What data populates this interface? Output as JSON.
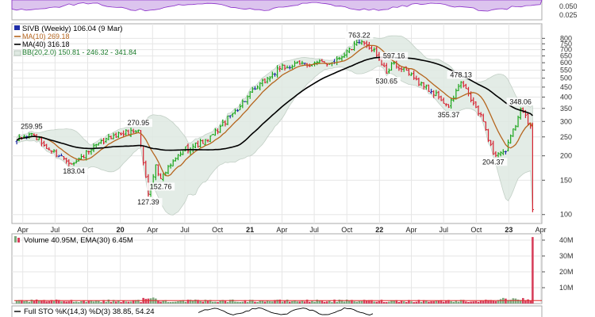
{
  "chart_data": {
    "type": "ohlc",
    "title": "SIVB (Weekly) 106.04 (9 Mar)",
    "scale": "log",
    "price_axis": {
      "ylim": [
        90,
        950
      ],
      "ticks": [
        100,
        150,
        200,
        250,
        300,
        350,
        400,
        450,
        500,
        550,
        600,
        650,
        700,
        750,
        800
      ]
    },
    "time_axis": {
      "ticks": [
        {
          "label": "Apr",
          "date": "2019-04-01"
        },
        {
          "label": "Jul",
          "date": "2019-07-01"
        },
        {
          "label": "Oct",
          "date": "2019-10-01"
        },
        {
          "label": "20",
          "date": "2020-01-01",
          "bold": true
        },
        {
          "label": "Apr",
          "date": "2020-04-01"
        },
        {
          "label": "Jul",
          "date": "2020-07-01"
        },
        {
          "label": "Oct",
          "date": "2020-10-01"
        },
        {
          "label": "21",
          "date": "2021-01-01",
          "bold": true
        },
        {
          "label": "Apr",
          "date": "2021-04-01"
        },
        {
          "label": "Jul",
          "date": "2021-07-01"
        },
        {
          "label": "Oct",
          "date": "2021-10-01"
        },
        {
          "label": "22",
          "date": "2022-01-01",
          "bold": true
        },
        {
          "label": "Apr",
          "date": "2022-04-01"
        },
        {
          "label": "Jul",
          "date": "2022-07-01"
        },
        {
          "label": "Oct",
          "date": "2022-10-01"
        },
        {
          "label": "23",
          "date": "2023-01-01",
          "bold": true
        },
        {
          "label": "Apr",
          "date": "2023-04-01"
        }
      ]
    },
    "legend": {
      "symbol": "SIVB (Weekly) 106.04 (9 Mar)",
      "ma10": "MA(10) 269.18",
      "ma40": "MA(40) 316.18",
      "bb": "BB(20,2.0) 150.81 - 246.32 - 341.84"
    },
    "price_anchors": [
      {
        "date": "2019-03-15",
        "close": 240
      },
      {
        "date": "2019-04-26",
        "close": 259.95
      },
      {
        "date": "2019-06-14",
        "close": 215
      },
      {
        "date": "2019-08-23",
        "close": 183.04
      },
      {
        "date": "2019-10-11",
        "close": 215
      },
      {
        "date": "2019-12-13",
        "close": 255
      },
      {
        "date": "2020-02-21",
        "close": 270.95
      },
      {
        "date": "2020-03-20",
        "close": 127.39
      },
      {
        "date": "2020-04-10",
        "close": 180
      },
      {
        "date": "2020-04-24",
        "close": 152.76
      },
      {
        "date": "2020-06-26",
        "close": 215
      },
      {
        "date": "2020-09-04",
        "close": 240
      },
      {
        "date": "2020-11-13",
        "close": 330
      },
      {
        "date": "2021-01-15",
        "close": 440
      },
      {
        "date": "2021-03-26",
        "close": 560
      },
      {
        "date": "2021-05-21",
        "close": 590
      },
      {
        "date": "2021-08-20",
        "close": 600
      },
      {
        "date": "2021-11-05",
        "close": 763.22
      },
      {
        "date": "2021-12-17",
        "close": 700
      },
      {
        "date": "2022-01-21",
        "close": 530.65
      },
      {
        "date": "2022-02-11",
        "close": 597.16
      },
      {
        "date": "2022-04-08",
        "close": 500
      },
      {
        "date": "2022-06-17",
        "close": 400
      },
      {
        "date": "2022-07-15",
        "close": 355.37
      },
      {
        "date": "2022-08-19",
        "close": 478.13
      },
      {
        "date": "2022-10-21",
        "close": 300
      },
      {
        "date": "2022-11-18",
        "close": 204.37
      },
      {
        "date": "2022-12-23",
        "close": 210
      },
      {
        "date": "2023-01-27",
        "close": 315
      },
      {
        "date": "2023-02-03",
        "close": 348.06
      },
      {
        "date": "2023-03-03",
        "close": 285
      },
      {
        "date": "2023-03-09",
        "close": 106.04
      }
    ],
    "price_labels": [
      {
        "date": "2019-04-26",
        "value": "259.95",
        "side": "above"
      },
      {
        "date": "2019-08-23",
        "value": "183.04",
        "side": "below"
      },
      {
        "date": "2020-02-21",
        "value": "270.95",
        "side": "above"
      },
      {
        "date": "2020-03-20",
        "value": "127.39",
        "side": "below"
      },
      {
        "date": "2020-04-24",
        "value": "152.76",
        "side": "below"
      },
      {
        "date": "2021-11-05",
        "value": "763.22",
        "side": "above"
      },
      {
        "date": "2022-01-21",
        "value": "530.65",
        "side": "below"
      },
      {
        "date": "2022-02-11",
        "value": "597.16",
        "side": "above"
      },
      {
        "date": "2022-07-15",
        "value": "355.37",
        "side": "below"
      },
      {
        "date": "2022-08-19",
        "value": "478.13",
        "side": "above"
      },
      {
        "date": "2022-11-18",
        "value": "204.37",
        "side": "below"
      },
      {
        "date": "2023-02-03",
        "value": "348.06",
        "side": "above"
      }
    ],
    "volume": {
      "label": "Volume 40.95M, EMA(30) 6.45M",
      "ticks": [
        "10M",
        "20M",
        "30M",
        "40M"
      ],
      "tick_values": [
        10,
        20,
        30,
        40
      ],
      "ylim": [
        0,
        43
      ],
      "last_value": 40.95,
      "ema": 6.45
    },
    "indicator_top": {
      "ticks": [
        "0.050",
        "0.025"
      ]
    },
    "stochastic": {
      "label": "Full STO %K(14,3) %D(3) 38.85, 54.24"
    },
    "colors": {
      "up": "#1aa51a",
      "down": "#d6202f",
      "neutral": "#1f2ea8",
      "ma10": "#b5651d",
      "ma40": "#000000",
      "bb_fill": "#dfe9e2",
      "bb_line": "#b9c8bd",
      "top_fill": "#dcc4ee",
      "top_line": "#8b2fc9",
      "vol_up": "#7da87d",
      "vol_down": "#d8405c",
      "vol_ema": "#e02a2a",
      "grid": "#e6e6e6",
      "axis": "#555555"
    }
  }
}
